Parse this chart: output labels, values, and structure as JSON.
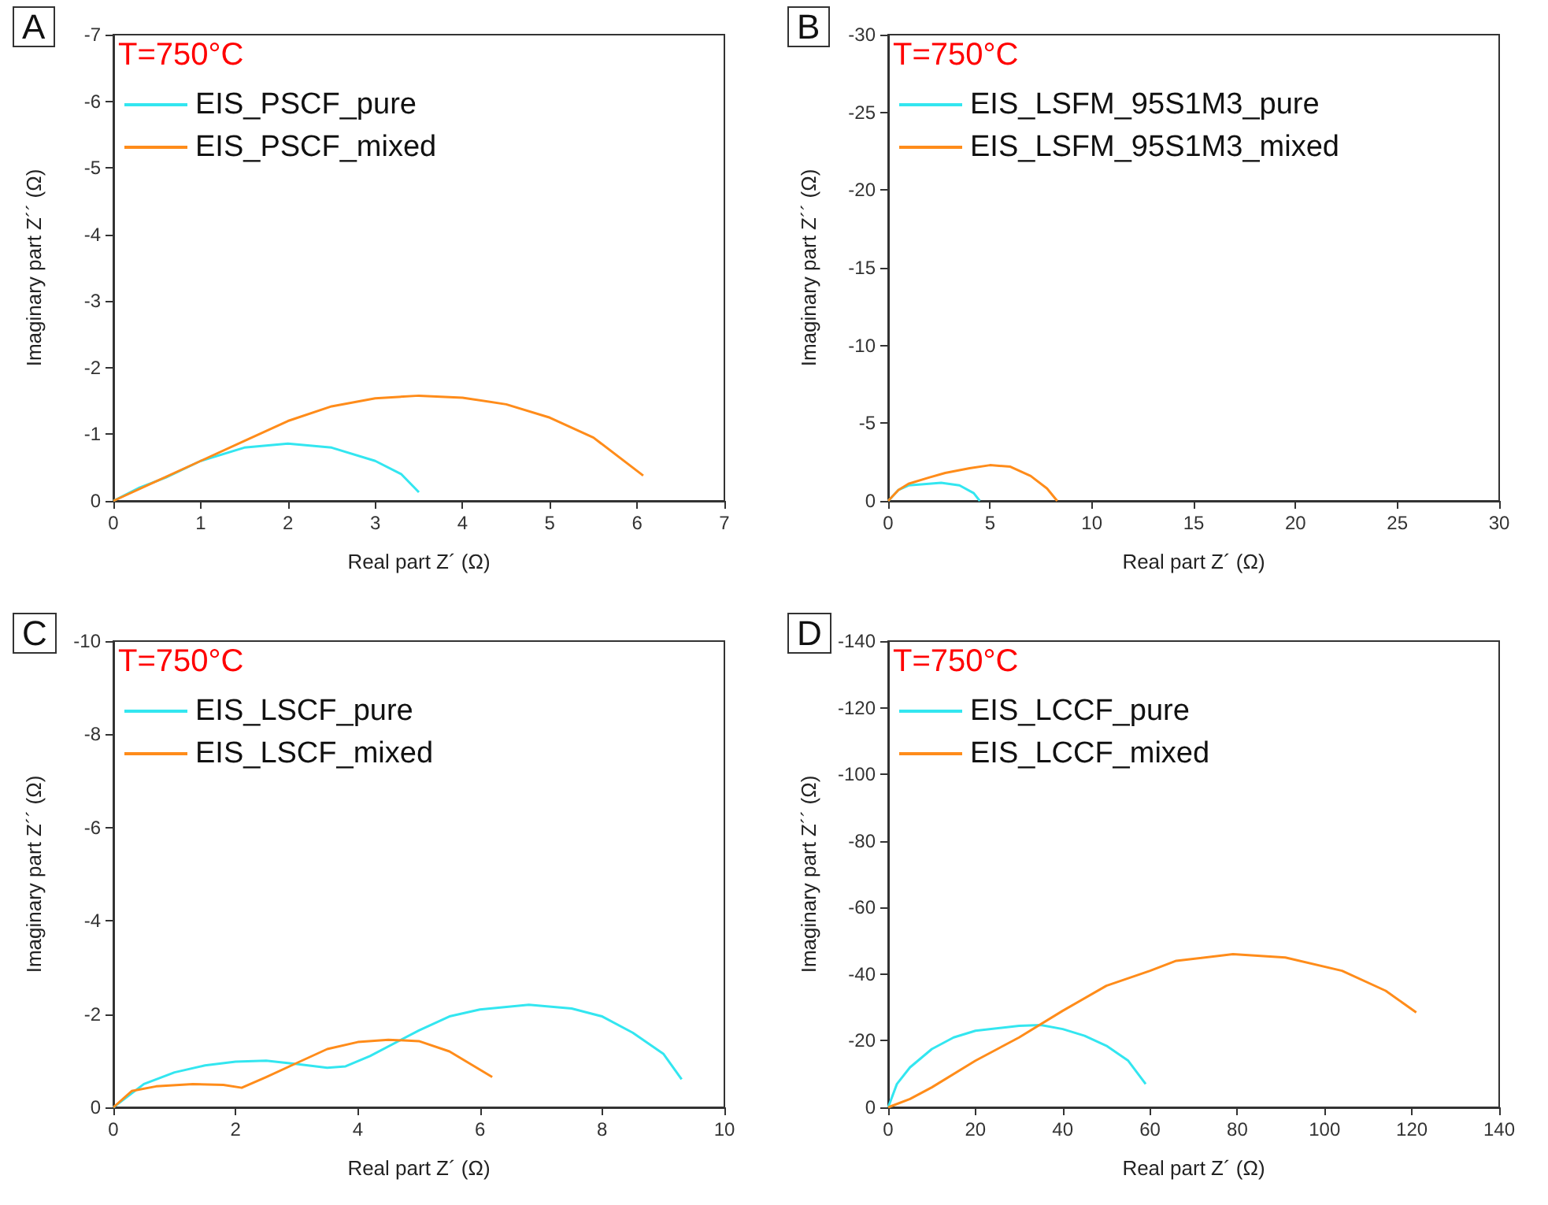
{
  "chart_data": [
    {
      "type": "line",
      "title": "A",
      "xlabel": "Real part Z´ (Ω)",
      "ylabel": "Imaginary part Z´´ (Ω)",
      "annotations": [
        "T=750°C"
      ],
      "legend": "top left",
      "xlim": [
        0,
        7
      ],
      "xticks": [
        0,
        1,
        2,
        3,
        4,
        5,
        6,
        7
      ],
      "ylim": [
        0,
        -7
      ],
      "yticks": [
        0,
        -1,
        -2,
        -3,
        -4,
        -5,
        -6,
        -7
      ],
      "series": [
        {
          "name": "EIS_PSCF_pure",
          "color": "#33e6f0",
          "x": [
            0,
            0.3,
            0.6,
            1,
            1.5,
            2,
            2.5,
            3,
            3.3,
            3.5
          ],
          "values": [
            0,
            -0.2,
            -0.35,
            -0.6,
            -0.8,
            -0.86,
            -0.8,
            -0.6,
            -0.4,
            -0.13
          ]
        },
        {
          "name": "EIS_PSCF_mixed",
          "color": "#ff8c1a",
          "x": [
            0,
            0.5,
            1,
            1.5,
            2,
            2.5,
            3,
            3.5,
            4,
            4.5,
            5,
            5.5,
            6.07
          ],
          "values": [
            0,
            -0.3,
            -0.6,
            -0.9,
            -1.2,
            -1.42,
            -1.54,
            -1.58,
            -1.55,
            -1.45,
            -1.25,
            -0.95,
            -0.38
          ]
        }
      ]
    },
    {
      "type": "line",
      "title": "B",
      "xlabel": "Real part Z´ (Ω)",
      "ylabel": "Imaginary part Z´´ (Ω)",
      "annotations": [
        "T=750°C"
      ],
      "legend": "top left",
      "xlim": [
        0,
        30
      ],
      "xticks": [
        0,
        5,
        10,
        15,
        20,
        25,
        30
      ],
      "ylim": [
        0,
        -30
      ],
      "yticks": [
        0,
        -5,
        -10,
        -15,
        -20,
        -25,
        -30
      ],
      "series": [
        {
          "name": "EIS_LSFM_95S1M3_pure",
          "color": "#33e6f0",
          "x": [
            0,
            0.5,
            1,
            2,
            2.6,
            3.5,
            4.2,
            4.5
          ],
          "values": [
            0,
            -0.7,
            -1.0,
            -1.1,
            -1.17,
            -1.0,
            -0.5,
            0
          ]
        },
        {
          "name": "EIS_LSFM_95S1M3_mixed",
          "color": "#ff8c1a",
          "x": [
            0,
            0.5,
            1,
            2,
            2.8,
            4,
            5,
            6,
            7,
            7.8,
            8.3
          ],
          "values": [
            0,
            -0.7,
            -1.1,
            -1.5,
            -1.8,
            -2.1,
            -2.3,
            -2.2,
            -1.6,
            -0.8,
            0
          ]
        }
      ]
    },
    {
      "type": "line",
      "title": "C",
      "xlabel": "Real part Z´ (Ω)",
      "ylabel": "Imaginary part Z´´ (Ω)",
      "annotations": [
        "T=750°C"
      ],
      "legend": "top left",
      "xlim": [
        0,
        10
      ],
      "xticks": [
        0,
        2,
        4,
        6,
        8,
        10
      ],
      "ylim": [
        0,
        -10
      ],
      "yticks": [
        0,
        -2,
        -4,
        -6,
        -8,
        -10
      ],
      "series": [
        {
          "name": "EIS_LSCF_pure",
          "color": "#33e6f0",
          "x": [
            0,
            0.5,
            1,
            1.5,
            2,
            2.5,
            3,
            3.5,
            3.8,
            4.2,
            5,
            5.5,
            6,
            6.8,
            7.5,
            8,
            8.5,
            9,
            9.3
          ],
          "values": [
            0,
            -0.5,
            -0.75,
            -0.9,
            -0.98,
            -1.0,
            -0.93,
            -0.85,
            -0.88,
            -1.1,
            -1.65,
            -1.95,
            -2.1,
            -2.2,
            -2.12,
            -1.95,
            -1.6,
            -1.15,
            -0.6
          ]
        },
        {
          "name": "EIS_LSCF_mixed",
          "color": "#ff8c1a",
          "x": [
            0,
            0.3,
            0.7,
            1.3,
            1.8,
            2.1,
            2.5,
            3,
            3.5,
            4,
            4.5,
            5,
            5.5,
            6.2
          ],
          "values": [
            0,
            -0.35,
            -0.45,
            -0.5,
            -0.48,
            -0.42,
            -0.65,
            -0.95,
            -1.25,
            -1.4,
            -1.45,
            -1.42,
            -1.2,
            -0.65
          ]
        }
      ]
    },
    {
      "type": "line",
      "title": "D",
      "xlabel": "Real part Z´ (Ω)",
      "ylabel": "Imaginary part Z´´ (Ω)",
      "annotations": [
        "T=750°C"
      ],
      "legend": "top left",
      "xlim": [
        0,
        140
      ],
      "xticks": [
        0,
        20,
        40,
        60,
        80,
        100,
        120,
        140
      ],
      "ylim": [
        0,
        -140
      ],
      "yticks": [
        0,
        -20,
        -40,
        -60,
        -80,
        -100,
        -120,
        -140
      ],
      "series": [
        {
          "name": "EIS_LCCF_pure",
          "color": "#33e6f0",
          "x": [
            0,
            2,
            5,
            10,
            15,
            20,
            30,
            35,
            40,
            45,
            50,
            55,
            59
          ],
          "values": [
            0,
            -7,
            -12,
            -17.5,
            -21,
            -23,
            -24.5,
            -24.7,
            -23.5,
            -21.5,
            -18.5,
            -14,
            -7
          ]
        },
        {
          "name": "EIS_LCCF_mixed",
          "color": "#ff8c1a",
          "x": [
            0,
            5,
            10,
            20,
            30,
            40,
            50,
            60,
            66,
            79,
            91,
            104,
            114,
            121
          ],
          "values": [
            0,
            -2.5,
            -6,
            -14,
            -21,
            -29,
            -36.5,
            -41,
            -44,
            -46,
            -45,
            -41,
            -35,
            -28.5
          ]
        }
      ]
    }
  ]
}
